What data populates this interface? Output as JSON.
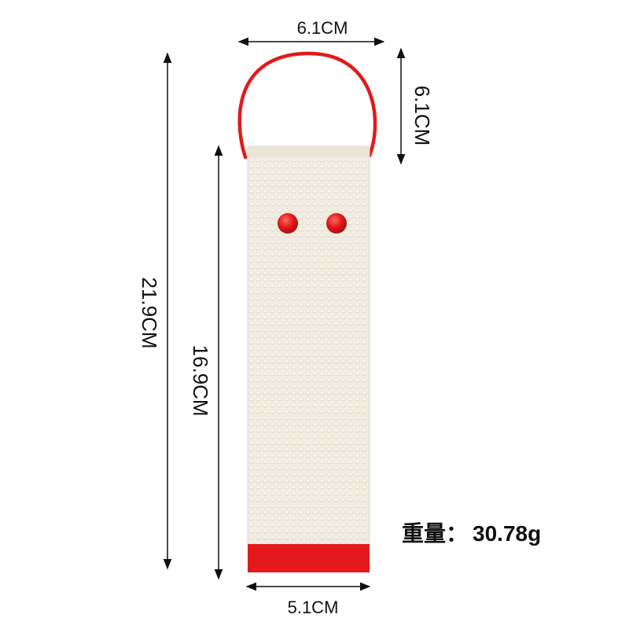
{
  "diagram": {
    "loop_width": "6.1CM",
    "loop_height": "6.1CM",
    "total_length": "21.9CM",
    "strap_length": "16.9CM",
    "strap_width": "5.1CM",
    "weight_label": "重量：",
    "weight_value": "30.78g"
  },
  "colors": {
    "accent_red": "#e3191b",
    "strap_fabric": "#f1ece0",
    "line": "#111111"
  }
}
